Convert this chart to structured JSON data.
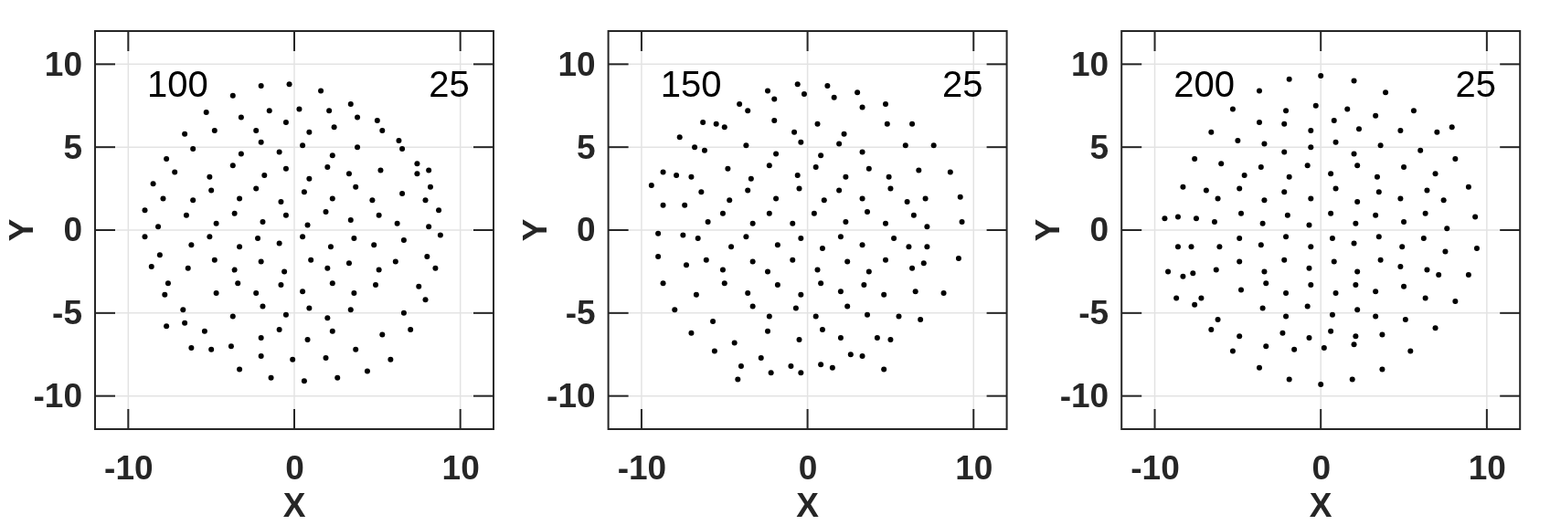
{
  "chart_data": [
    {
      "type": "scatter",
      "xlabel": "X",
      "ylabel": "Y",
      "xlim": [
        -12,
        12
      ],
      "ylim": [
        -12,
        12
      ],
      "xticks": [
        -10,
        0,
        10
      ],
      "yticks": [
        -10,
        -5,
        0,
        5,
        10
      ],
      "grid": true,
      "marker": "circle",
      "annotations": [
        "100",
        "25"
      ],
      "series": [
        {
          "color": "#000000",
          "x": [
            8.8,
            8.7,
            8.2,
            7.4,
            6.3,
            5.0,
            3.4,
            1.6,
            -0.3,
            -2.0,
            -3.7,
            -5.3,
            -6.6,
            -7.7,
            -8.5,
            -9.0,
            -9.0,
            -8.6,
            -7.8,
            -6.6,
            -5.0,
            -3.3,
            -1.4,
            0.6,
            2.6,
            4.4,
            5.8,
            7.0,
            7.9,
            8.5,
            8.1,
            7.9,
            7.4,
            6.5,
            5.3,
            3.8,
            2.1,
            0.3,
            -1.5,
            -3.2,
            -4.8,
            -6.1,
            -7.2,
            -7.9,
            -8.2,
            -8.1,
            -7.6,
            -6.7,
            -5.4,
            -3.8,
            -2.0,
            -0.1,
            1.9,
            3.7,
            5.3,
            6.6,
            7.5,
            8.0,
            -2.3,
            -0.5,
            0.9,
            2.4,
            -3.2,
            -2.0,
            -0.9,
            0.5,
            2.3,
            3.8,
            -5.1,
            -3.7,
            -1.8,
            -0.5,
            0.9,
            2.0,
            3.3,
            5.2,
            -6.1,
            -5.0,
            -3.3,
            -2.3,
            -0.8,
            0.6,
            2.3,
            3.7,
            4.7,
            6.5,
            -6.5,
            -4.7,
            -3.6,
            -1.9,
            -0.5,
            0.8,
            1.9,
            3.4,
            5.1,
            6.2,
            -6.2,
            -5.1,
            -3.3,
            -2.2,
            -0.9,
            0.5,
            2.2,
            3.6,
            4.8,
            6.6,
            -6.4,
            -4.8,
            -3.6,
            -2.0,
            -0.6,
            1.0,
            2.0,
            3.3,
            5.1,
            6.1,
            -4.7,
            -3.4,
            -2.3,
            -0.8,
            0.5,
            2.3,
            3.6,
            4.9,
            -3.7,
            -1.9,
            -0.5,
            0.9,
            2.0,
            3.4,
            -2.0,
            -0.9,
            0.8,
            2.3,
            -7.7,
            -6.2,
            8.1
          ],
          "values": [
            -0.3,
            1.2,
            2.6,
            4.0,
            5.4,
            6.6,
            7.6,
            8.4,
            8.8,
            8.7,
            8.1,
            7.1,
            5.8,
            4.3,
            2.8,
            1.2,
            -0.4,
            -2.2,
            -3.9,
            -5.6,
            -7.2,
            -8.4,
            -8.9,
            -9.1,
            -8.9,
            -8.5,
            -7.8,
            -6.0,
            -4.2,
            -2.3,
            0.2,
            1.8,
            3.4,
            4.9,
            6.0,
            6.8,
            7.2,
            7.3,
            7.2,
            6.8,
            6.0,
            4.9,
            3.5,
            1.9,
            0.2,
            -1.5,
            -3.2,
            -4.8,
            -6.1,
            -7.0,
            -7.6,
            -7.8,
            -7.7,
            -7.2,
            -6.3,
            -5.0,
            -3.4,
            -1.6,
            6.0,
            6.5,
            5.9,
            6.2,
            4.6,
            5.3,
            4.7,
            5.1,
            4.5,
            5.0,
            3.2,
            3.9,
            3.3,
            3.7,
            3.1,
            3.8,
            3.4,
            3.6,
            1.8,
            2.4,
            1.9,
            2.5,
            1.7,
            2.3,
            1.9,
            2.6,
            1.8,
            2.2,
            0.9,
            0.4,
            1.0,
            0.5,
            0.9,
            0.3,
            1.1,
            0.6,
            0.9,
            0.4,
            -0.9,
            -0.4,
            -1.0,
            -0.5,
            -0.8,
            -0.4,
            -1.0,
            -0.5,
            -0.9,
            -0.6,
            -2.3,
            -1.8,
            -2.4,
            -1.9,
            -2.5,
            -1.8,
            -2.3,
            -2.0,
            -2.4,
            -1.9,
            -3.8,
            -3.2,
            -3.8,
            -3.3,
            -3.7,
            -3.2,
            -3.8,
            -3.3,
            -5.2,
            -4.6,
            -5.1,
            -4.7,
            -5.3,
            -4.8,
            -6.5,
            -6.0,
            -6.6,
            -6.1,
            -5.8,
            -7.1,
            3.6
          ]
        }
      ]
    },
    {
      "type": "scatter",
      "xlabel": "X",
      "ylabel": "Y",
      "xlim": [
        -12,
        12
      ],
      "ylim": [
        -12,
        12
      ],
      "xticks": [
        -10,
        0,
        10
      ],
      "yticks": [
        -10,
        -5,
        0,
        5,
        10
      ],
      "grid": true,
      "marker": "circle",
      "annotations": [
        "150",
        "25"
      ],
      "series": [
        {
          "color": "#000000",
          "x": [
            9.3,
            9.2,
            8.6,
            7.6,
            6.3,
            4.7,
            3.0,
            1.2,
            -0.6,
            -2.4,
            -4.1,
            -5.5,
            -6.8,
            -7.9,
            -8.7,
            -9.0,
            -9.0,
            -8.7,
            -8.0,
            -7.0,
            -5.6,
            -4.0,
            -2.2,
            -0.4,
            1.5,
            3.3,
            5.0,
            6.8,
            8.2,
            9.1,
            7.2,
            7.1,
            6.7,
            5.9,
            4.8,
            3.3,
            1.6,
            -0.2,
            -2.0,
            -3.6,
            -5.0,
            -6.2,
            -7.0,
            -7.4,
            -7.5,
            -7.3,
            -6.7,
            -5.7,
            -4.4,
            -2.8,
            -1.0,
            0.8,
            2.6,
            4.2,
            5.5,
            6.5,
            7.0,
            7.2,
            -2.0,
            -0.8,
            0.6,
            2.2,
            -3.7,
            -1.9,
            -0.4,
            0.8,
            1.9,
            3.3,
            -4.8,
            -3.4,
            -2.3,
            -0.6,
            0.5,
            2.3,
            3.7,
            4.9,
            -6.4,
            -4.7,
            -3.6,
            -1.9,
            -0.5,
            1.0,
            1.9,
            3.3,
            5.0,
            6.0,
            -6.0,
            -5.1,
            -3.3,
            -2.3,
            -0.9,
            0.4,
            2.3,
            3.6,
            4.7,
            6.4,
            -6.6,
            -4.6,
            -3.7,
            -1.8,
            -0.4,
            0.9,
            2.0,
            3.3,
            5.2,
            6.1,
            -6.1,
            -5.1,
            -3.3,
            -2.4,
            -0.9,
            0.6,
            2.4,
            3.7,
            4.7,
            6.3,
            -5.0,
            -3.6,
            -1.8,
            -0.4,
            0.8,
            2.0,
            3.4,
            4.6,
            -3.3,
            -2.3,
            -0.7,
            0.5,
            2.4,
            3.6,
            -2.4,
            -0.5,
            0.9,
            2.0,
            -7.7,
            -8.7,
            -9.4,
            -4.2,
            4.6,
            -6.3
          ],
          "values": [
            0.5,
            2.0,
            3.5,
            5.1,
            6.4,
            7.6,
            8.3,
            8.7,
            8.8,
            8.4,
            7.6,
            6.4,
            5.0,
            3.3,
            1.5,
            -0.2,
            -1.6,
            -3.2,
            -4.8,
            -6.2,
            -7.3,
            -8.2,
            -8.6,
            -8.6,
            -8.3,
            -7.6,
            -6.6,
            -5.4,
            -3.8,
            -1.7,
            0.2,
            1.9,
            3.6,
            5.1,
            6.4,
            7.4,
            8.0,
            8.2,
            7.9,
            7.2,
            6.2,
            4.8,
            3.2,
            1.5,
            -0.3,
            -2.1,
            -3.9,
            -5.5,
            -6.8,
            -7.7,
            -8.2,
            -8.1,
            -7.5,
            -6.5,
            -5.2,
            -3.7,
            -2.0,
            -1.0,
            6.6,
            5.9,
            6.4,
            5.8,
            5.1,
            4.6,
            5.3,
            4.5,
            5.2,
            4.7,
            3.7,
            3.1,
            3.9,
            3.3,
            3.8,
            3.2,
            3.7,
            3.2,
            2.3,
            1.8,
            2.4,
            1.9,
            2.5,
            1.8,
            2.4,
            1.9,
            2.5,
            1.7,
            0.5,
            1.0,
            0.4,
            1.0,
            0.4,
            1.0,
            0.5,
            1.1,
            0.4,
            0.9,
            -0.5,
            -1.0,
            -0.4,
            -0.9,
            -0.5,
            -1.1,
            -0.4,
            -0.9,
            -0.5,
            -1.0,
            -1.8,
            -2.4,
            -1.9,
            -2.5,
            -1.8,
            -2.4,
            -1.9,
            -2.5,
            -1.8,
            -2.3,
            -3.2,
            -3.8,
            -3.3,
            -3.9,
            -3.2,
            -3.7,
            -3.3,
            -3.9,
            -4.6,
            -5.2,
            -4.7,
            -5.2,
            -4.6,
            -5.1,
            -6.1,
            -6.6,
            -6.0,
            -6.5,
            5.6,
            3.5,
            2.7,
            -9.0,
            -8.4,
            6.5
          ]
        }
      ]
    },
    {
      "type": "scatter",
      "xlabel": "X",
      "ylabel": "Y",
      "xlim": [
        -12,
        12
      ],
      "ylim": [
        -12,
        12
      ],
      "xticks": [
        -10,
        0,
        10
      ],
      "yticks": [
        -10,
        -5,
        0,
        5,
        10
      ],
      "grid": true,
      "marker": "circle",
      "annotations": [
        "200",
        "25"
      ],
      "series": [
        {
          "color": "#000000",
          "x": [
            9.4,
            9.3,
            8.9,
            8.1,
            7.0,
            5.6,
            3.9,
            2.0,
            0.0,
            -1.9,
            -3.7,
            -5.3,
            -6.6,
            -7.6,
            -8.3,
            -8.6,
            -8.6,
            -8.3,
            -7.6,
            -6.6,
            -5.3,
            -3.7,
            -1.9,
            0.0,
            1.9,
            3.7,
            5.4,
            6.9,
            8.1,
            8.9,
            7.6,
            7.4,
            6.9,
            6.0,
            4.8,
            3.3,
            1.6,
            -0.3,
            -2.1,
            -3.7,
            -5.0,
            -6.0,
            -6.9,
            -7.5,
            -7.8,
            -7.7,
            -7.2,
            -6.2,
            -4.9,
            -3.3,
            -1.6,
            0.2,
            2.0,
            3.7,
            5.1,
            6.3,
            7.1,
            7.5,
            -2.2,
            -0.6,
            0.8,
            2.3,
            -3.4,
            -2.2,
            -0.6,
            0.9,
            2.0,
            3.6,
            -4.6,
            -3.6,
            -1.9,
            -0.8,
            0.6,
            2.2,
            3.4,
            5.0,
            -6.2,
            -4.9,
            -3.4,
            -2.2,
            -0.6,
            0.9,
            2.2,
            3.5,
            4.8,
            6.4,
            -6.4,
            -4.8,
            -3.5,
            -2.0,
            -0.7,
            0.6,
            2.1,
            3.3,
            5.0,
            6.3,
            -6.1,
            -4.9,
            -3.6,
            -2.1,
            -0.6,
            0.7,
            2.0,
            3.5,
            4.9,
            6.2,
            -6.3,
            -4.9,
            -3.4,
            -2.2,
            -0.7,
            0.8,
            2.2,
            3.6,
            4.8,
            6.4,
            -4.8,
            -3.3,
            -2.1,
            -0.6,
            0.9,
            2.1,
            3.3,
            5.0,
            -3.5,
            -2.1,
            -0.8,
            0.7,
            2.2,
            3.3,
            -2.3,
            -0.7,
            0.6,
            2.1,
            7.9,
            -9.4,
            -9.2,
            -8.7
          ],
          "values": [
            -1.1,
            0.8,
            2.6,
            4.3,
            5.9,
            7.2,
            8.3,
            9.0,
            9.3,
            9.1,
            8.4,
            7.3,
            5.9,
            4.3,
            2.6,
            0.8,
            -1.0,
            -2.8,
            -4.5,
            -6.0,
            -7.3,
            -8.3,
            -9.0,
            -9.3,
            -9.0,
            -8.4,
            -7.3,
            -5.9,
            -4.3,
            -2.7,
            0.1,
            1.8,
            3.4,
            4.8,
            6.0,
            6.9,
            7.3,
            7.5,
            7.2,
            6.5,
            5.4,
            4.0,
            2.4,
            0.7,
            -1.0,
            -2.6,
            -4.1,
            -5.4,
            -6.4,
            -7.0,
            -7.2,
            -7.1,
            -6.9,
            -6.3,
            -5.4,
            -4.1,
            -2.7,
            -1.3,
            6.4,
            6.0,
            6.6,
            6.1,
            5.2,
            4.7,
            5.0,
            5.3,
            4.6,
            5.1,
            3.3,
            3.8,
            3.2,
            3.9,
            3.4,
            3.9,
            3.2,
            3.8,
            1.9,
            2.5,
            1.8,
            2.3,
            1.9,
            2.5,
            1.7,
            2.3,
            1.9,
            2.4,
            0.5,
            1.0,
            0.4,
            0.9,
            0.3,
            1.0,
            0.4,
            0.9,
            0.5,
            1.0,
            -1.0,
            -0.5,
            -0.9,
            -0.4,
            -1.0,
            -0.5,
            -0.8,
            -0.4,
            -1.0,
            -0.5,
            -2.4,
            -1.9,
            -2.5,
            -1.8,
            -2.3,
            -1.9,
            -2.5,
            -1.8,
            -2.2,
            -2.4,
            -3.6,
            -3.2,
            -3.8,
            -3.3,
            -3.8,
            -3.3,
            -3.7,
            -3.4,
            -4.7,
            -5.2,
            -4.6,
            -5.1,
            -4.8,
            -5.2,
            -6.2,
            -6.5,
            -6.1,
            -6.4,
            6.2,
            0.7,
            -2.5,
            -4.1
          ]
        }
      ]
    }
  ]
}
